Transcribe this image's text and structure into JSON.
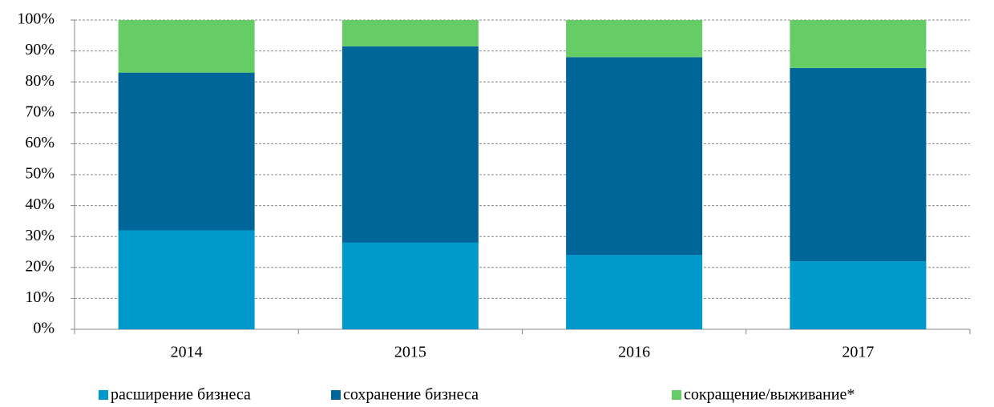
{
  "chart_data": {
    "type": "stacked_bar",
    "categories": [
      "2014",
      "2015",
      "2016",
      "2017"
    ],
    "series": [
      {
        "name": "расширение бизнеса",
        "color": "#0099cc",
        "values": [
          32,
          28,
          24,
          22
        ]
      },
      {
        "name": "сохранение бизнеса",
        "color": "#006699",
        "values": [
          51,
          63.5,
          64,
          62.5
        ]
      },
      {
        "name": "сокращение/выживание*",
        "color": "#66cc66",
        "values": [
          17,
          8.5,
          12,
          15.5
        ]
      }
    ],
    "ylim": [
      0,
      100
    ],
    "yticks": [
      {
        "value": 0,
        "label": "0%"
      },
      {
        "value": 10,
        "label": "10%"
      },
      {
        "value": 20,
        "label": "20%"
      },
      {
        "value": 30,
        "label": "30%"
      },
      {
        "value": 40,
        "label": "40%"
      },
      {
        "value": 50,
        "label": "50%"
      },
      {
        "value": 60,
        "label": "60%"
      },
      {
        "value": 70,
        "label": "70%"
      },
      {
        "value": 80,
        "label": "80%"
      },
      {
        "value": 90,
        "label": "90%"
      },
      {
        "value": 100,
        "label": "100%"
      }
    ],
    "grid": true,
    "legend": "bottom"
  }
}
